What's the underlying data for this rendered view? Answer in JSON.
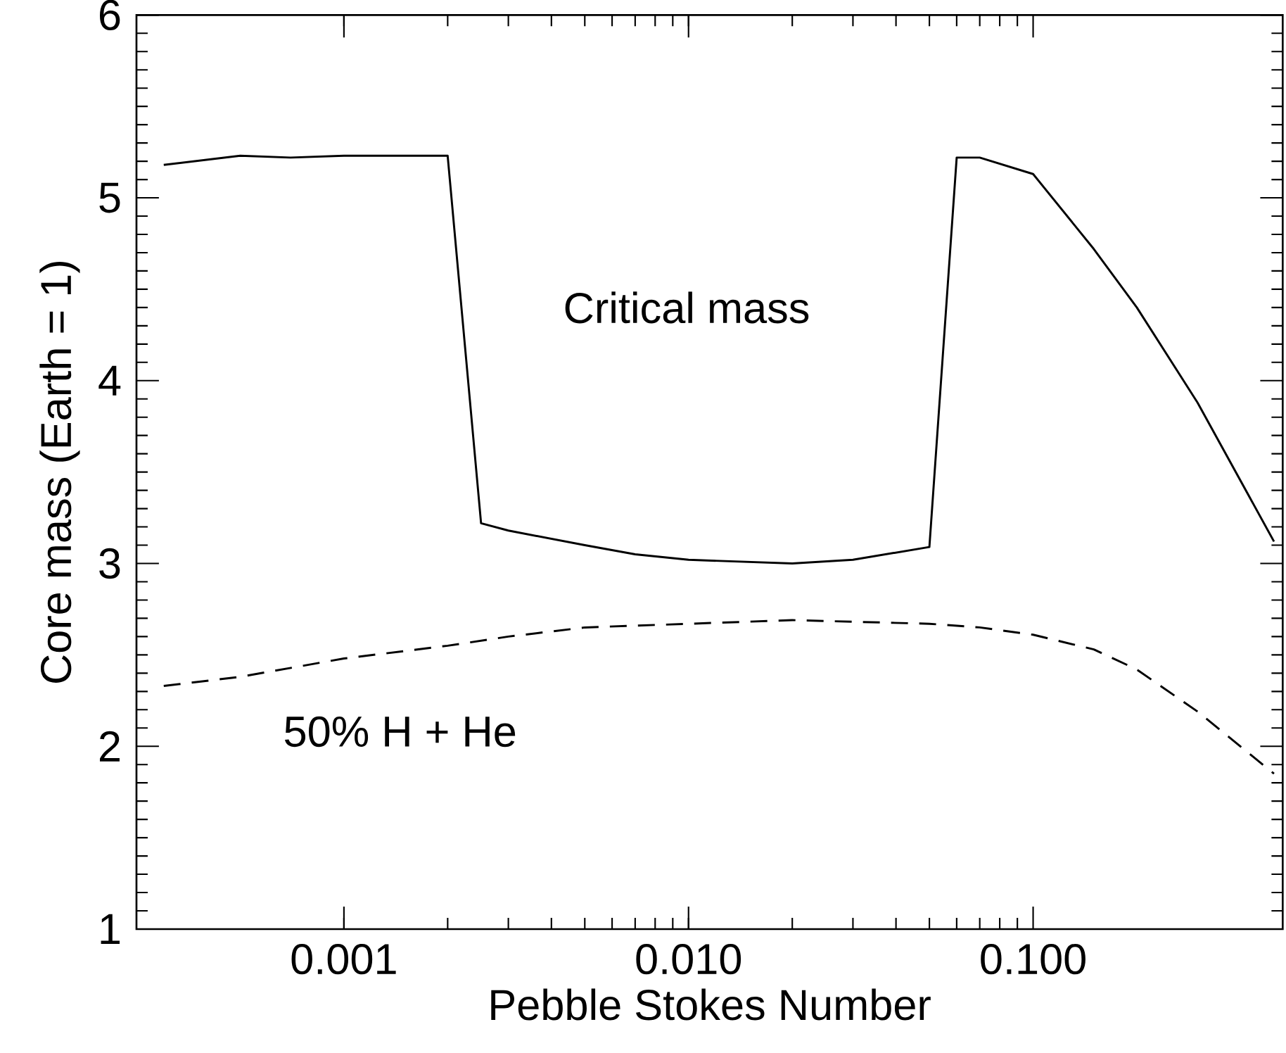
{
  "chart_data": {
    "type": "line",
    "xlabel": "Pebble Stokes Number",
    "ylabel": "Core mass (Earth = 1)",
    "log": "x",
    "xlim": [
      0.00025,
      0.53
    ],
    "ylim": [
      1,
      6
    ],
    "xticks": [
      {
        "value": 0.001,
        "label": "0.001"
      },
      {
        "value": 0.01,
        "label": "0.010"
      },
      {
        "value": 0.1,
        "label": "0.100"
      }
    ],
    "yticks": [
      1,
      2,
      3,
      4,
      5,
      6
    ],
    "marker": "none",
    "series": [
      {
        "name": "Critical mass",
        "color": "#000000",
        "line_style": "solid",
        "x": [
          0.0003,
          0.0005,
          0.0007,
          0.001,
          0.002,
          0.0025,
          0.003,
          0.005,
          0.007,
          0.01,
          0.02,
          0.03,
          0.05,
          0.06,
          0.07,
          0.1,
          0.15,
          0.2,
          0.3,
          0.5
        ],
        "values": [
          5.18,
          5.23,
          5.22,
          5.23,
          5.23,
          3.22,
          3.18,
          3.1,
          3.05,
          3.02,
          3.0,
          3.02,
          3.09,
          5.22,
          5.22,
          5.13,
          4.72,
          4.4,
          3.88,
          3.12
        ]
      },
      {
        "name": "50% H + He",
        "color": "#000000",
        "line_style": "dashed",
        "x": [
          0.0003,
          0.0005,
          0.001,
          0.002,
          0.003,
          0.005,
          0.01,
          0.02,
          0.05,
          0.07,
          0.1,
          0.15,
          0.2,
          0.3,
          0.5
        ],
        "values": [
          2.33,
          2.38,
          2.48,
          2.55,
          2.6,
          2.65,
          2.67,
          2.69,
          2.67,
          2.65,
          2.61,
          2.53,
          2.42,
          2.19,
          1.85
        ]
      }
    ]
  }
}
